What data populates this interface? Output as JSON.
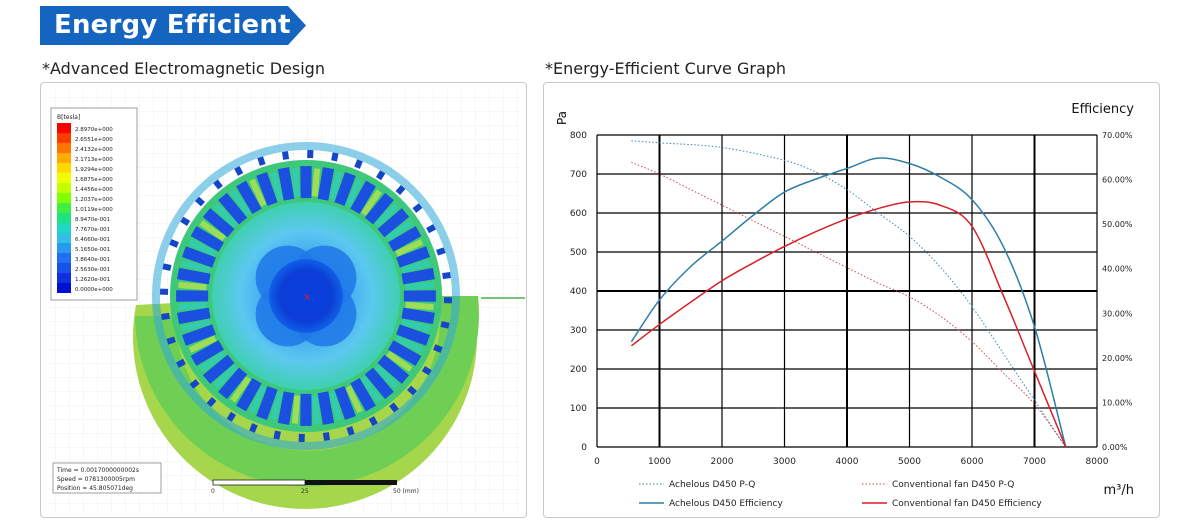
{
  "banner": {
    "title": "Energy Efficient",
    "color": "#1565c0"
  },
  "left_panel": {
    "caption": "*Advanced Electromagnetic Design",
    "legend_title": "B[tesla]",
    "legend_values": [
      "2.8970e+000",
      "2.6551e+000",
      "2.4132e+000",
      "2.1713e+000",
      "1.9294e+000",
      "1.6875e+000",
      "1.4456e+000",
      "1.2037e+000",
      "1.0119e+000",
      "8.9470e-001",
      "7.7670e-001",
      "6.4660e-001",
      "5.1650e-001",
      "3.8640e-001",
      "2.5630e-001",
      "1.2620e-001",
      "0.0000e+000"
    ],
    "info_lines": [
      "Time = 0.0017000000002s",
      "Speed = 0781300005rpm",
      "Position = 45.805071deg"
    ],
    "scale_labels": [
      "0",
      "25",
      "50 (mm)"
    ]
  },
  "chart_data": {
    "caption": "*Energy-Efficient Curve Graph",
    "type": "line",
    "ylabel_left": "Pa",
    "ylabel_right": "Efficiency",
    "xlabel": "m³/h",
    "xlim": [
      0,
      8000
    ],
    "ylim_left": [
      0,
      800
    ],
    "ylim_right": [
      0,
      70
    ],
    "x_ticks": [
      "0",
      "1000",
      "2000",
      "3000",
      "4000",
      "5000",
      "6000",
      "7000",
      "8000"
    ],
    "y_ticks_left": [
      "0",
      "100",
      "200",
      "300",
      "400",
      "500",
      "600",
      "700",
      "800"
    ],
    "y_ticks_right": [
      "0.00%",
      "10.00%",
      "20.00%",
      "30.00%",
      "40.00%",
      "50.00%",
      "60.00%",
      "70.00%"
    ],
    "grid": true,
    "legend_position": "bottom",
    "series": [
      {
        "name": "Achelous D450 P-Q",
        "axis": "left",
        "style": "dotted",
        "color": "#3a86b4",
        "points": [
          [
            550,
            785
          ],
          [
            1000,
            780
          ],
          [
            2000,
            768
          ],
          [
            3000,
            735
          ],
          [
            3500,
            705
          ],
          [
            4000,
            660
          ],
          [
            4500,
            600
          ],
          [
            5000,
            540
          ],
          [
            5500,
            460
          ],
          [
            6000,
            360
          ],
          [
            6500,
            240
          ],
          [
            7000,
            120
          ],
          [
            7500,
            0
          ]
        ]
      },
      {
        "name": "Conventional fan D450 P-Q",
        "axis": "left",
        "style": "dotted",
        "color": "#d64545",
        "points": [
          [
            550,
            730
          ],
          [
            1000,
            700
          ],
          [
            1500,
            660
          ],
          [
            2000,
            620
          ],
          [
            2500,
            580
          ],
          [
            3000,
            540
          ],
          [
            3500,
            500
          ],
          [
            4000,
            460
          ],
          [
            4500,
            420
          ],
          [
            5000,
            385
          ],
          [
            5500,
            335
          ],
          [
            6000,
            270
          ],
          [
            6500,
            190
          ],
          [
            7000,
            110
          ],
          [
            7500,
            0
          ]
        ]
      },
      {
        "name": "Achelous D450 Efficiency",
        "axis": "right",
        "style": "solid",
        "color": "#2e7fa8",
        "points": [
          [
            550,
            23.6
          ],
          [
            1000,
            33
          ],
          [
            1500,
            40.5
          ],
          [
            2000,
            46.2
          ],
          [
            2500,
            52
          ],
          [
            3000,
            57.2
          ],
          [
            3500,
            60.1
          ],
          [
            4000,
            62.5
          ],
          [
            4500,
            64.8
          ],
          [
            5000,
            63.6
          ],
          [
            5500,
            60.5
          ],
          [
            6000,
            55.5
          ],
          [
            6500,
            45
          ],
          [
            7000,
            27
          ],
          [
            7500,
            0
          ]
        ]
      },
      {
        "name": "Conventional fan D450 Efficiency",
        "axis": "right",
        "style": "solid",
        "color": "#d61f26",
        "points": [
          [
            550,
            22.7
          ],
          [
            1000,
            27.5
          ],
          [
            1500,
            32.5
          ],
          [
            2000,
            37.3
          ],
          [
            2500,
            41.3
          ],
          [
            3000,
            45
          ],
          [
            3500,
            48.3
          ],
          [
            4000,
            51.2
          ],
          [
            4500,
            53.5
          ],
          [
            5000,
            55
          ],
          [
            5500,
            54.2
          ],
          [
            6000,
            49.5
          ],
          [
            6500,
            34
          ],
          [
            7000,
            17
          ],
          [
            7500,
            0
          ]
        ]
      }
    ]
  }
}
